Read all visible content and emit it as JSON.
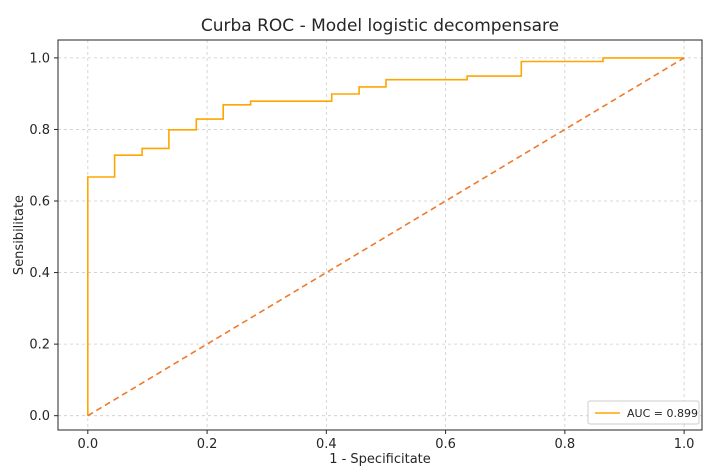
{
  "chart_data": {
    "type": "line",
    "title": "Curba ROC - Model logistic decompensare",
    "xlabel": "1 - Specificitate",
    "ylabel": "Sensibilitate",
    "xlim": [
      -0.05,
      1.03
    ],
    "ylim": [
      -0.04,
      1.05
    ],
    "xticks": [
      0.0,
      0.2,
      0.4,
      0.6,
      0.8,
      1.0
    ],
    "yticks": [
      0.0,
      0.2,
      0.4,
      0.6,
      0.8,
      1.0
    ],
    "xtick_labels": [
      "0.0",
      "0.2",
      "0.4",
      "0.6",
      "0.8",
      "1.0"
    ],
    "ytick_labels": [
      "0.0",
      "0.2",
      "0.4",
      "0.6",
      "0.8",
      "1.0"
    ],
    "grid": true,
    "legend_position": "bottom-right",
    "series": [
      {
        "name": "AUC = 0.899",
        "color": "#ffa500",
        "style": "step",
        "x": [
          0.0,
          0.0,
          0.045,
          0.045,
          0.091,
          0.091,
          0.136,
          0.136,
          0.182,
          0.182,
          0.227,
          0.227,
          0.273,
          0.273,
          0.409,
          0.409,
          0.455,
          0.455,
          0.5,
          0.5,
          0.636,
          0.636,
          0.727,
          0.727,
          0.864,
          0.864,
          1.0
        ],
        "y": [
          0.0,
          0.667,
          0.667,
          0.728,
          0.728,
          0.747,
          0.747,
          0.799,
          0.799,
          0.829,
          0.829,
          0.869,
          0.869,
          0.879,
          0.879,
          0.899,
          0.899,
          0.919,
          0.919,
          0.939,
          0.939,
          0.949,
          0.949,
          0.99,
          0.99,
          1.0,
          1.0
        ]
      },
      {
        "name": "",
        "color": "#f07a2a",
        "style": "dashed",
        "x": [
          0.0,
          1.0
        ],
        "y": [
          0.0,
          1.0
        ]
      }
    ]
  }
}
